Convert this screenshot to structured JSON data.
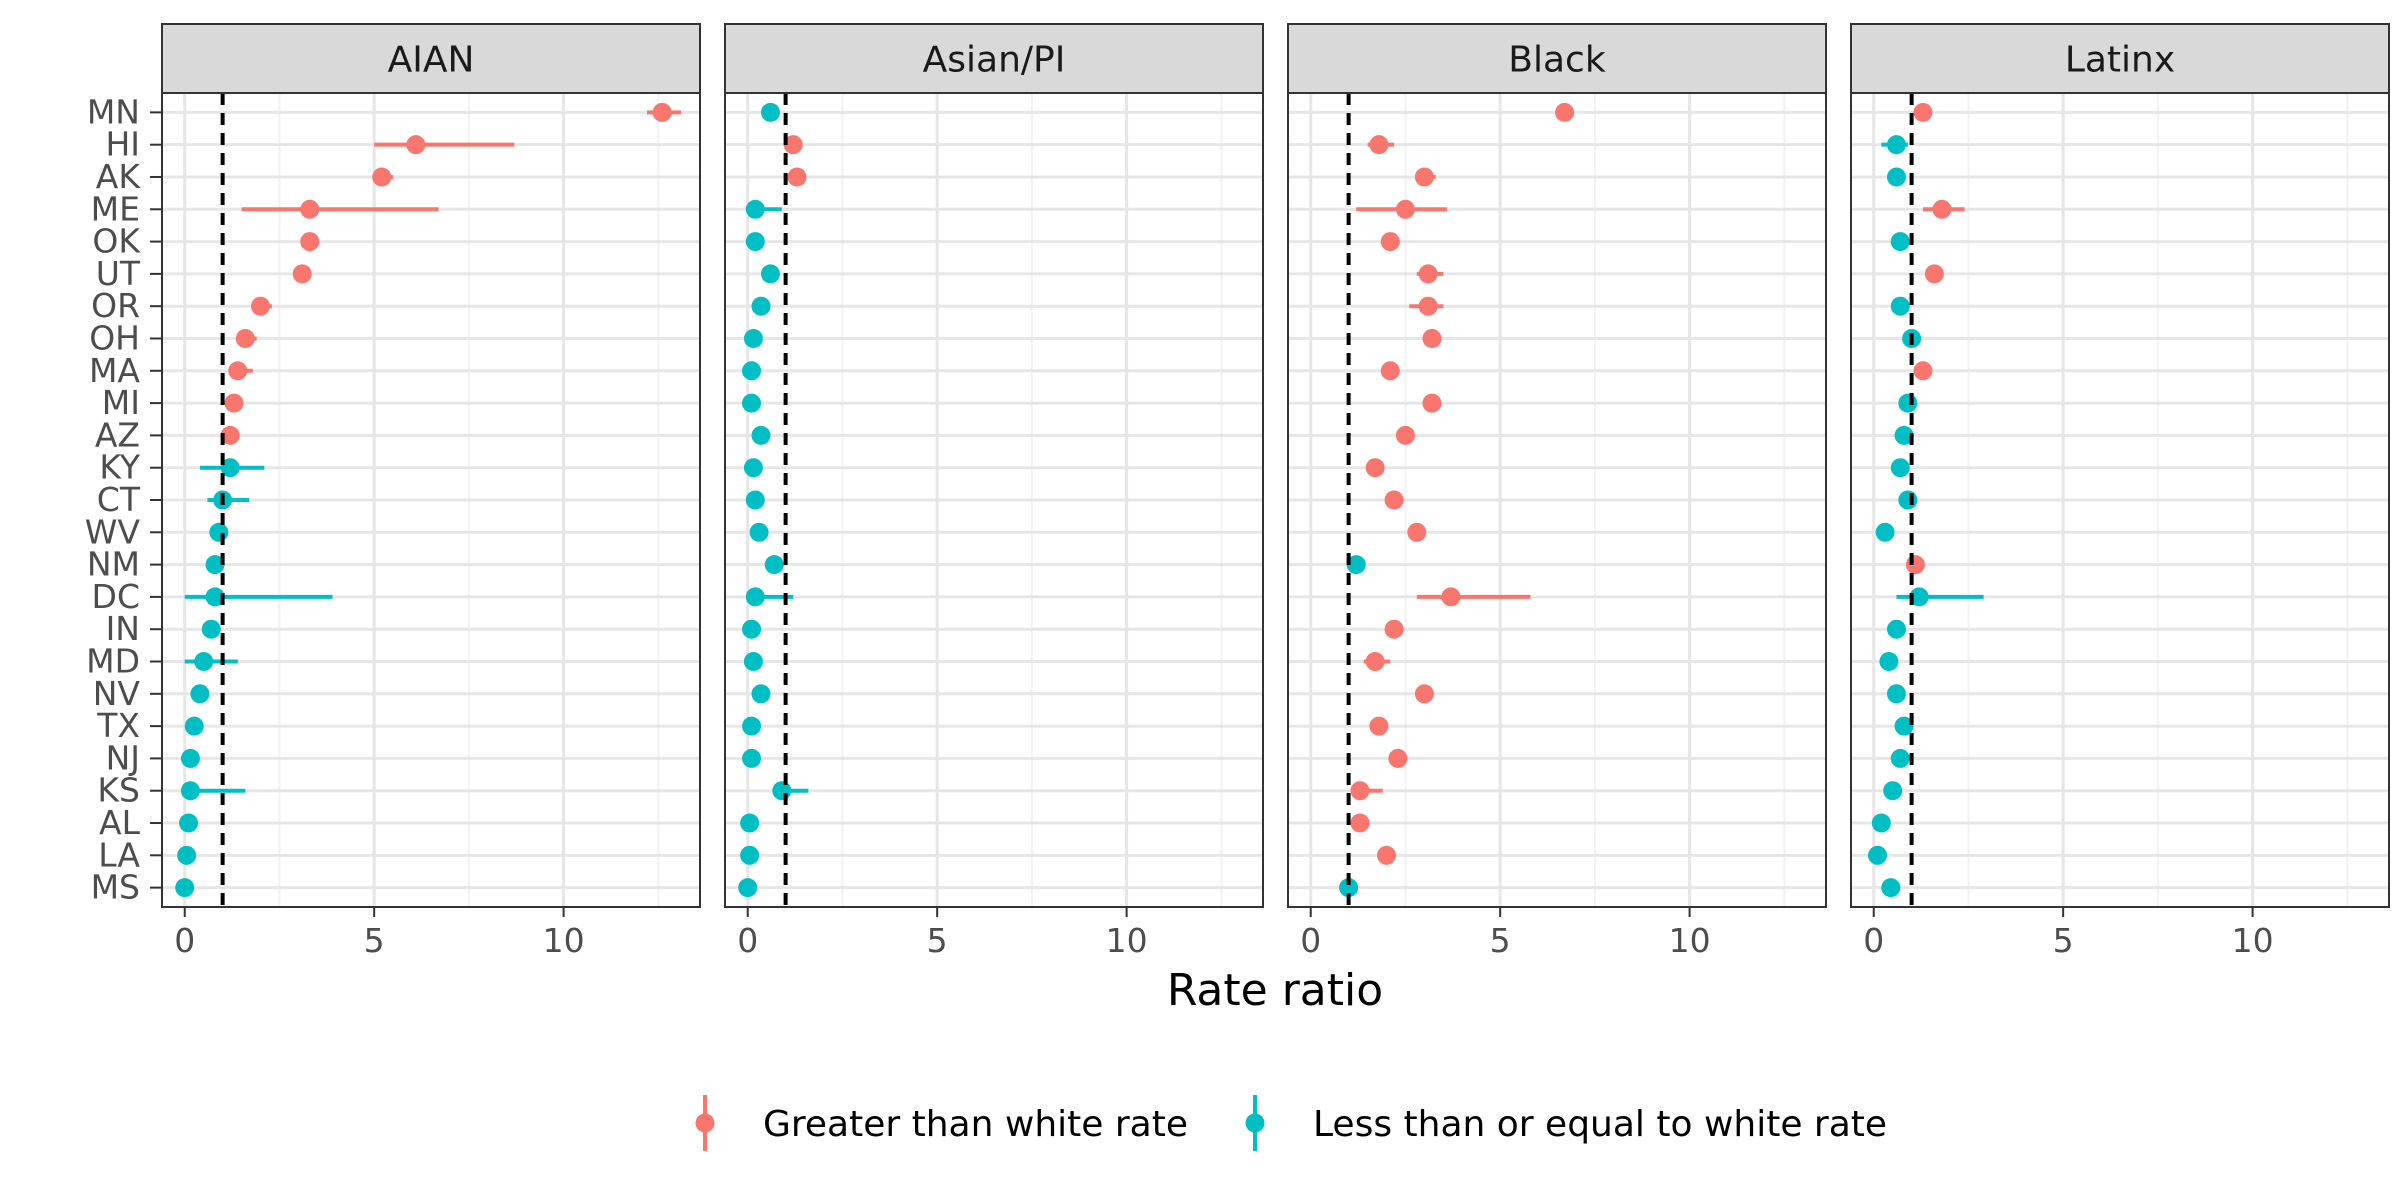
{
  "chart_data": {
    "type": "scatter",
    "subtype": "faceted dot-and-interval plot",
    "xlabel": "Rate ratio",
    "ylabel": "",
    "xlim": [
      -0.6,
      13.6
    ],
    "xticks": [
      0,
      5,
      10
    ],
    "reference_line_x": 1,
    "grid": true,
    "legend_position": "bottom",
    "states": [
      "MN",
      "HI",
      "AK",
      "ME",
      "OK",
      "UT",
      "OR",
      "OH",
      "MA",
      "MI",
      "AZ",
      "KY",
      "CT",
      "WV",
      "NM",
      "DC",
      "IN",
      "MD",
      "NV",
      "TX",
      "NJ",
      "KS",
      "AL",
      "LA",
      "MS"
    ],
    "legend": [
      {
        "key": "gt",
        "label": "Greater than white rate",
        "color": "#F8766D"
      },
      {
        "key": "le",
        "label": "Less than or equal to white rate",
        "color": "#00BFC4"
      }
    ],
    "facets": [
      {
        "name": "AIAN",
        "points": [
          {
            "state": "MN",
            "value": 12.6,
            "low": 12.2,
            "high": 13.1,
            "group": "gt"
          },
          {
            "state": "HI",
            "value": 6.1,
            "low": 5.0,
            "high": 8.7,
            "group": "gt"
          },
          {
            "state": "AK",
            "value": 5.2,
            "low": 5.0,
            "high": 5.5,
            "group": "gt"
          },
          {
            "state": "ME",
            "value": 3.3,
            "low": 1.5,
            "high": 6.7,
            "group": "gt"
          },
          {
            "state": "OK",
            "value": 3.3,
            "low": 3.2,
            "high": 3.4,
            "group": "gt"
          },
          {
            "state": "UT",
            "value": 3.1,
            "low": 2.9,
            "high": 3.3,
            "group": "gt"
          },
          {
            "state": "OR",
            "value": 2.0,
            "low": 1.8,
            "high": 2.3,
            "group": "gt"
          },
          {
            "state": "OH",
            "value": 1.6,
            "low": 1.4,
            "high": 1.9,
            "group": "gt"
          },
          {
            "state": "MA",
            "value": 1.4,
            "low": 1.2,
            "high": 1.8,
            "group": "gt"
          },
          {
            "state": "MI",
            "value": 1.3,
            "low": 1.2,
            "high": 1.5,
            "group": "gt"
          },
          {
            "state": "AZ",
            "value": 1.2,
            "low": 1.1,
            "high": 1.3,
            "group": "gt"
          },
          {
            "state": "KY",
            "value": 1.2,
            "low": 0.4,
            "high": 2.1,
            "group": "le"
          },
          {
            "state": "CT",
            "value": 1.0,
            "low": 0.6,
            "high": 1.7,
            "group": "le"
          },
          {
            "state": "WV",
            "value": 0.9,
            "low": 0.7,
            "high": 1.1,
            "group": "le"
          },
          {
            "state": "NM",
            "value": 0.8,
            "low": 0.7,
            "high": 0.9,
            "group": "le"
          },
          {
            "state": "DC",
            "value": 0.8,
            "low": 0.0,
            "high": 3.9,
            "group": "le"
          },
          {
            "state": "IN",
            "value": 0.7,
            "low": 0.6,
            "high": 0.8,
            "group": "le"
          },
          {
            "state": "MD",
            "value": 0.5,
            "low": 0.0,
            "high": 1.4,
            "group": "le"
          },
          {
            "state": "NV",
            "value": 0.4,
            "low": 0.3,
            "high": 0.5,
            "group": "le"
          },
          {
            "state": "TX",
            "value": 0.25,
            "low": 0.2,
            "high": 0.3,
            "group": "le"
          },
          {
            "state": "NJ",
            "value": 0.15,
            "low": 0.1,
            "high": 0.2,
            "group": "le"
          },
          {
            "state": "KS",
            "value": 0.15,
            "low": 0.0,
            "high": 1.6,
            "group": "le"
          },
          {
            "state": "AL",
            "value": 0.1,
            "low": 0.05,
            "high": 0.15,
            "group": "le"
          },
          {
            "state": "LA",
            "value": 0.05,
            "low": 0.02,
            "high": 0.1,
            "group": "le"
          },
          {
            "state": "MS",
            "value": 0.0,
            "low": 0.0,
            "high": 0.05,
            "group": "le"
          }
        ]
      },
      {
        "name": "Asian/PI",
        "points": [
          {
            "state": "MN",
            "value": 0.6,
            "low": 0.5,
            "high": 0.7,
            "group": "le"
          },
          {
            "state": "HI",
            "value": 1.2,
            "low": 1.1,
            "high": 1.25,
            "group": "gt"
          },
          {
            "state": "AK",
            "value": 1.3,
            "low": 1.1,
            "high": 1.5,
            "group": "gt"
          },
          {
            "state": "ME",
            "value": 0.2,
            "low": 0.0,
            "high": 0.9,
            "group": "le"
          },
          {
            "state": "OK",
            "value": 0.2,
            "low": 0.15,
            "high": 0.3,
            "group": "le"
          },
          {
            "state": "UT",
            "value": 0.6,
            "low": 0.5,
            "high": 0.7,
            "group": "le"
          },
          {
            "state": "OR",
            "value": 0.35,
            "low": 0.3,
            "high": 0.45,
            "group": "le"
          },
          {
            "state": "OH",
            "value": 0.15,
            "low": 0.1,
            "high": 0.2,
            "group": "le"
          },
          {
            "state": "MA",
            "value": 0.1,
            "low": 0.08,
            "high": 0.15,
            "group": "le"
          },
          {
            "state": "MI",
            "value": 0.1,
            "low": 0.08,
            "high": 0.15,
            "group": "le"
          },
          {
            "state": "AZ",
            "value": 0.35,
            "low": 0.3,
            "high": 0.4,
            "group": "le"
          },
          {
            "state": "KY",
            "value": 0.15,
            "low": 0.1,
            "high": 0.25,
            "group": "le"
          },
          {
            "state": "CT",
            "value": 0.2,
            "low": 0.15,
            "high": 0.25,
            "group": "le"
          },
          {
            "state": "WV",
            "value": 0.3,
            "low": 0.2,
            "high": 0.4,
            "group": "le"
          },
          {
            "state": "NM",
            "value": 0.7,
            "low": 0.6,
            "high": 0.8,
            "group": "le"
          },
          {
            "state": "DC",
            "value": 0.2,
            "low": 0.0,
            "high": 1.2,
            "group": "le"
          },
          {
            "state": "IN",
            "value": 0.1,
            "low": 0.08,
            "high": 0.15,
            "group": "le"
          },
          {
            "state": "MD",
            "value": 0.15,
            "low": 0.1,
            "high": 0.2,
            "group": "le"
          },
          {
            "state": "NV",
            "value": 0.35,
            "low": 0.3,
            "high": 0.4,
            "group": "le"
          },
          {
            "state": "TX",
            "value": 0.1,
            "low": 0.08,
            "high": 0.15,
            "group": "le"
          },
          {
            "state": "NJ",
            "value": 0.1,
            "low": 0.08,
            "high": 0.15,
            "group": "le"
          },
          {
            "state": "KS",
            "value": 0.9,
            "low": 0.7,
            "high": 1.6,
            "group": "le"
          },
          {
            "state": "AL",
            "value": 0.05,
            "low": 0.03,
            "high": 0.1,
            "group": "le"
          },
          {
            "state": "LA",
            "value": 0.05,
            "low": 0.03,
            "high": 0.1,
            "group": "le"
          },
          {
            "state": "MS",
            "value": 0.0,
            "low": 0.0,
            "high": 0.05,
            "group": "le"
          }
        ]
      },
      {
        "name": "Black",
        "points": [
          {
            "state": "MN",
            "value": 6.7,
            "low": 6.6,
            "high": 6.8,
            "group": "gt"
          },
          {
            "state": "HI",
            "value": 1.8,
            "low": 1.5,
            "high": 2.2,
            "group": "gt"
          },
          {
            "state": "AK",
            "value": 3.0,
            "low": 2.8,
            "high": 3.3,
            "group": "gt"
          },
          {
            "state": "ME",
            "value": 2.5,
            "low": 1.2,
            "high": 3.6,
            "group": "gt"
          },
          {
            "state": "OK",
            "value": 2.1,
            "low": 2.0,
            "high": 2.2,
            "group": "gt"
          },
          {
            "state": "UT",
            "value": 3.1,
            "low": 2.8,
            "high": 3.5,
            "group": "gt"
          },
          {
            "state": "OR",
            "value": 3.1,
            "low": 2.6,
            "high": 3.5,
            "group": "gt"
          },
          {
            "state": "OH",
            "value": 3.2,
            "low": 3.1,
            "high": 3.3,
            "group": "gt"
          },
          {
            "state": "MA",
            "value": 2.1,
            "low": 2.0,
            "high": 2.2,
            "group": "gt"
          },
          {
            "state": "MI",
            "value": 3.2,
            "low": 3.1,
            "high": 3.3,
            "group": "gt"
          },
          {
            "state": "AZ",
            "value": 2.5,
            "low": 2.4,
            "high": 2.6,
            "group": "gt"
          },
          {
            "state": "KY",
            "value": 1.7,
            "low": 1.6,
            "high": 1.8,
            "group": "gt"
          },
          {
            "state": "CT",
            "value": 2.2,
            "low": 2.0,
            "high": 2.3,
            "group": "gt"
          },
          {
            "state": "WV",
            "value": 2.8,
            "low": 2.6,
            "high": 3.0,
            "group": "gt"
          },
          {
            "state": "NM",
            "value": 1.2,
            "low": 1.0,
            "high": 1.3,
            "group": "le"
          },
          {
            "state": "DC",
            "value": 3.7,
            "low": 2.8,
            "high": 5.8,
            "group": "gt"
          },
          {
            "state": "IN",
            "value": 2.2,
            "low": 2.1,
            "high": 2.3,
            "group": "gt"
          },
          {
            "state": "MD",
            "value": 1.7,
            "low": 1.4,
            "high": 2.1,
            "group": "gt"
          },
          {
            "state": "NV",
            "value": 3.0,
            "low": 2.9,
            "high": 3.1,
            "group": "gt"
          },
          {
            "state": "TX",
            "value": 1.8,
            "low": 1.7,
            "high": 1.9,
            "group": "gt"
          },
          {
            "state": "NJ",
            "value": 2.3,
            "low": 2.2,
            "high": 2.4,
            "group": "gt"
          },
          {
            "state": "KS",
            "value": 1.3,
            "low": 1.1,
            "high": 1.9,
            "group": "gt"
          },
          {
            "state": "AL",
            "value": 1.3,
            "low": 1.2,
            "high": 1.4,
            "group": "gt"
          },
          {
            "state": "LA",
            "value": 2.0,
            "low": 1.9,
            "high": 2.1,
            "group": "gt"
          },
          {
            "state": "MS",
            "value": 1.0,
            "low": 0.95,
            "high": 1.05,
            "group": "le"
          }
        ]
      },
      {
        "name": "Latinx",
        "points": [
          {
            "state": "MN",
            "value": 1.3,
            "low": 1.2,
            "high": 1.4,
            "group": "gt"
          },
          {
            "state": "HI",
            "value": 0.6,
            "low": 0.2,
            "high": 0.9,
            "group": "le"
          },
          {
            "state": "AK",
            "value": 0.6,
            "low": 0.5,
            "high": 0.7,
            "group": "le"
          },
          {
            "state": "ME",
            "value": 1.8,
            "low": 1.3,
            "high": 2.4,
            "group": "gt"
          },
          {
            "state": "OK",
            "value": 0.7,
            "low": 0.6,
            "high": 0.8,
            "group": "le"
          },
          {
            "state": "UT",
            "value": 1.6,
            "low": 1.5,
            "high": 1.7,
            "group": "gt"
          },
          {
            "state": "OR",
            "value": 0.7,
            "low": 0.6,
            "high": 0.8,
            "group": "le"
          },
          {
            "state": "OH",
            "value": 1.0,
            "low": 0.9,
            "high": 1.05,
            "group": "le"
          },
          {
            "state": "MA",
            "value": 1.3,
            "low": 1.2,
            "high": 1.35,
            "group": "gt"
          },
          {
            "state": "MI",
            "value": 0.9,
            "low": 0.8,
            "high": 1.0,
            "group": "le"
          },
          {
            "state": "AZ",
            "value": 0.8,
            "low": 0.75,
            "high": 0.85,
            "group": "le"
          },
          {
            "state": "KY",
            "value": 0.7,
            "low": 0.6,
            "high": 0.8,
            "group": "le"
          },
          {
            "state": "CT",
            "value": 0.9,
            "low": 0.85,
            "high": 1.0,
            "group": "le"
          },
          {
            "state": "WV",
            "value": 0.3,
            "low": 0.2,
            "high": 0.4,
            "group": "le"
          },
          {
            "state": "NM",
            "value": 1.1,
            "low": 1.05,
            "high": 1.15,
            "group": "gt"
          },
          {
            "state": "DC",
            "value": 1.2,
            "low": 0.6,
            "high": 2.9,
            "group": "le"
          },
          {
            "state": "IN",
            "value": 0.6,
            "low": 0.55,
            "high": 0.65,
            "group": "le"
          },
          {
            "state": "MD",
            "value": 0.4,
            "low": 0.3,
            "high": 0.6,
            "group": "le"
          },
          {
            "state": "NV",
            "value": 0.6,
            "low": 0.55,
            "high": 0.65,
            "group": "le"
          },
          {
            "state": "TX",
            "value": 0.8,
            "low": 0.75,
            "high": 0.85,
            "group": "le"
          },
          {
            "state": "NJ",
            "value": 0.7,
            "low": 0.65,
            "high": 0.75,
            "group": "le"
          },
          {
            "state": "KS",
            "value": 0.5,
            "low": 0.45,
            "high": 0.55,
            "group": "le"
          },
          {
            "state": "AL",
            "value": 0.2,
            "low": 0.15,
            "high": 0.25,
            "group": "le"
          },
          {
            "state": "LA",
            "value": 0.1,
            "low": 0.05,
            "high": 0.15,
            "group": "le"
          },
          {
            "state": "MS",
            "value": 0.45,
            "low": 0.4,
            "high": 0.5,
            "group": "le"
          }
        ]
      }
    ]
  }
}
